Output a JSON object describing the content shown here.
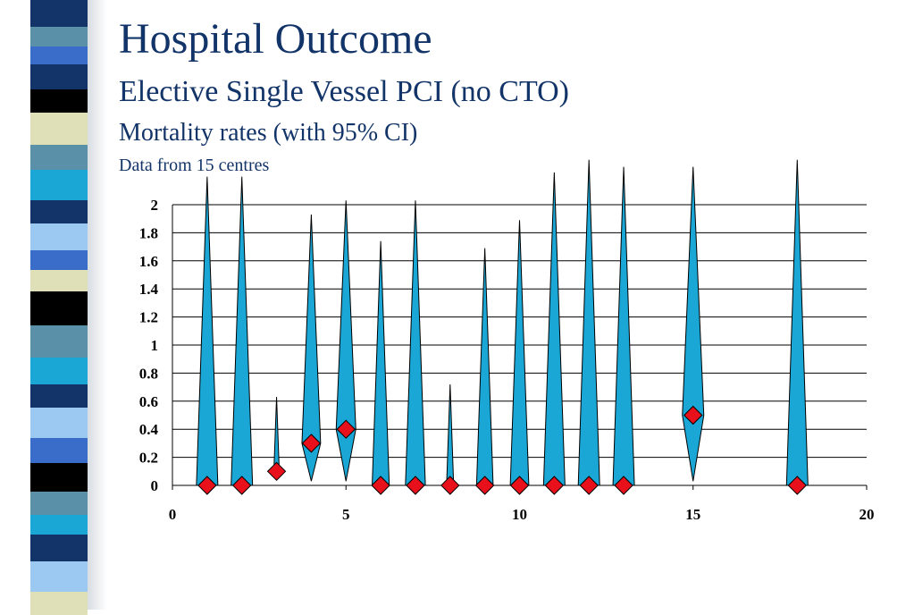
{
  "slide": {
    "title": "Hospital Outcome",
    "subtitle": "Elective Single Vessel PCI (no CTO)",
    "subtitle2": "Mortality rates (with 95% CI)",
    "note": "Data from 15 centres"
  },
  "colors": {
    "title": "#123468",
    "ci_fill": "#1aa7d6",
    "marker": "#e8101a",
    "side_stripes": [
      "#123468",
      "#3a6dc9",
      "#000000",
      "#e0e0b8",
      "#5a91a8",
      "#1aa7d6",
      "#9cc9f2"
    ]
  },
  "chart_data": {
    "type": "scatter",
    "x_ticks": [
      "0",
      "5",
      "10",
      "15",
      "20"
    ],
    "y_ticks": [
      "0",
      "0.2",
      "0.4",
      "0.6",
      "0.8",
      "1",
      "1.2",
      "1.4",
      "1.6",
      "1.8",
      "2"
    ],
    "xlim": [
      0,
      20
    ],
    "ylim": [
      0,
      2
    ],
    "grid": "horizontal",
    "points": [
      {
        "x": 1,
        "y": 0,
        "upper": 2.2
      },
      {
        "x": 2,
        "y": 0,
        "upper": 2.2
      },
      {
        "x": 3,
        "y": 0.1,
        "lower": 0.08,
        "upper": 0.63
      },
      {
        "x": 4,
        "y": 0.3,
        "lower": 0.03,
        "upper": 1.93
      },
      {
        "x": 5,
        "y": 0.4,
        "lower": 0.03,
        "upper": 2.03
      },
      {
        "x": 6,
        "y": 0,
        "upper": 1.74
      },
      {
        "x": 7,
        "y": 0,
        "upper": 2.03
      },
      {
        "x": 8,
        "y": 0,
        "upper": 0.72
      },
      {
        "x": 9,
        "y": 0,
        "upper": 1.69
      },
      {
        "x": 10,
        "y": 0,
        "upper": 1.89
      },
      {
        "x": 11,
        "y": 0,
        "upper": 2.23
      },
      {
        "x": 12,
        "y": 0,
        "upper": 2.32
      },
      {
        "x": 13,
        "y": 0,
        "upper": 2.27
      },
      {
        "x": 15,
        "y": 0.5,
        "lower": 0.03,
        "upper": 2.27
      },
      {
        "x": 18,
        "y": 0,
        "upper": 2.32
      }
    ]
  }
}
